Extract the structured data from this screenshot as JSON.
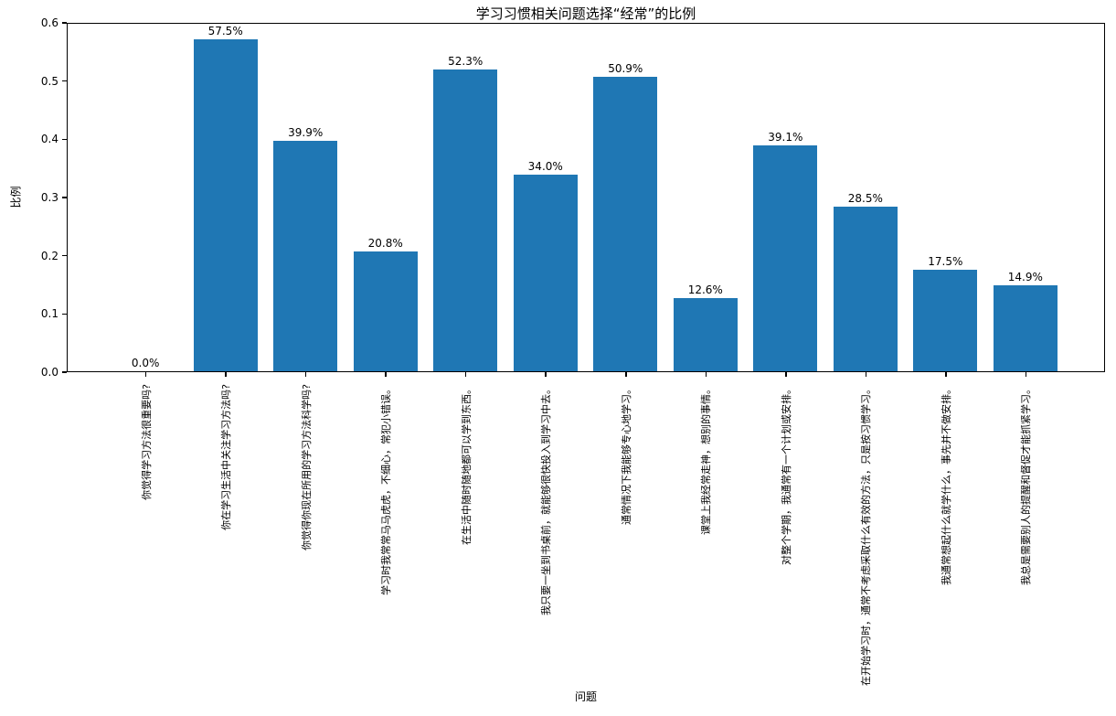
{
  "chart_data": {
    "type": "bar",
    "title": "学习习惯相关问题选择“经常”的比例",
    "xlabel": "问题",
    "ylabel": "比例",
    "ylim": [
      0.0,
      0.6
    ],
    "yticks": [
      "0.0",
      "0.1",
      "0.2",
      "0.3",
      "0.4",
      "0.5",
      "0.6"
    ],
    "grid": false,
    "legend": "none",
    "bar_color": "#1f77b4",
    "categories": [
      "你觉得学习方法很重要吗?",
      "你在学习生活中关注学习方法吗?",
      "你觉得你现在所用的学习方法科学吗?",
      "学习时我常常马马虎虎，不细心，常犯小错误。",
      "在生活中随时随地都可以学到东西。",
      "我只要一坐到书桌前，就能够很快投入到学习中去。",
      "通常情况下我能够专心地学习。",
      "课堂上我经常走神，想别的事情。",
      "对整个学期，我通常有一个计划或安排。",
      "在开始学习时，通常不考虑采取什么有效的方法，只是按习惯学习。",
      "我通常想起什么就学什么，事先并不做安排。",
      "我总是需要别人的提醒和督促才能抓紧学习。"
    ],
    "values": [
      0.0,
      0.575,
      0.399,
      0.208,
      0.523,
      0.34,
      0.509,
      0.126,
      0.391,
      0.285,
      0.175,
      0.149
    ],
    "value_labels": [
      "0.0%",
      "57.5%",
      "39.9%",
      "20.8%",
      "52.3%",
      "34.0%",
      "50.9%",
      "12.6%",
      "39.1%",
      "28.5%",
      "17.5%",
      "14.9%"
    ]
  }
}
